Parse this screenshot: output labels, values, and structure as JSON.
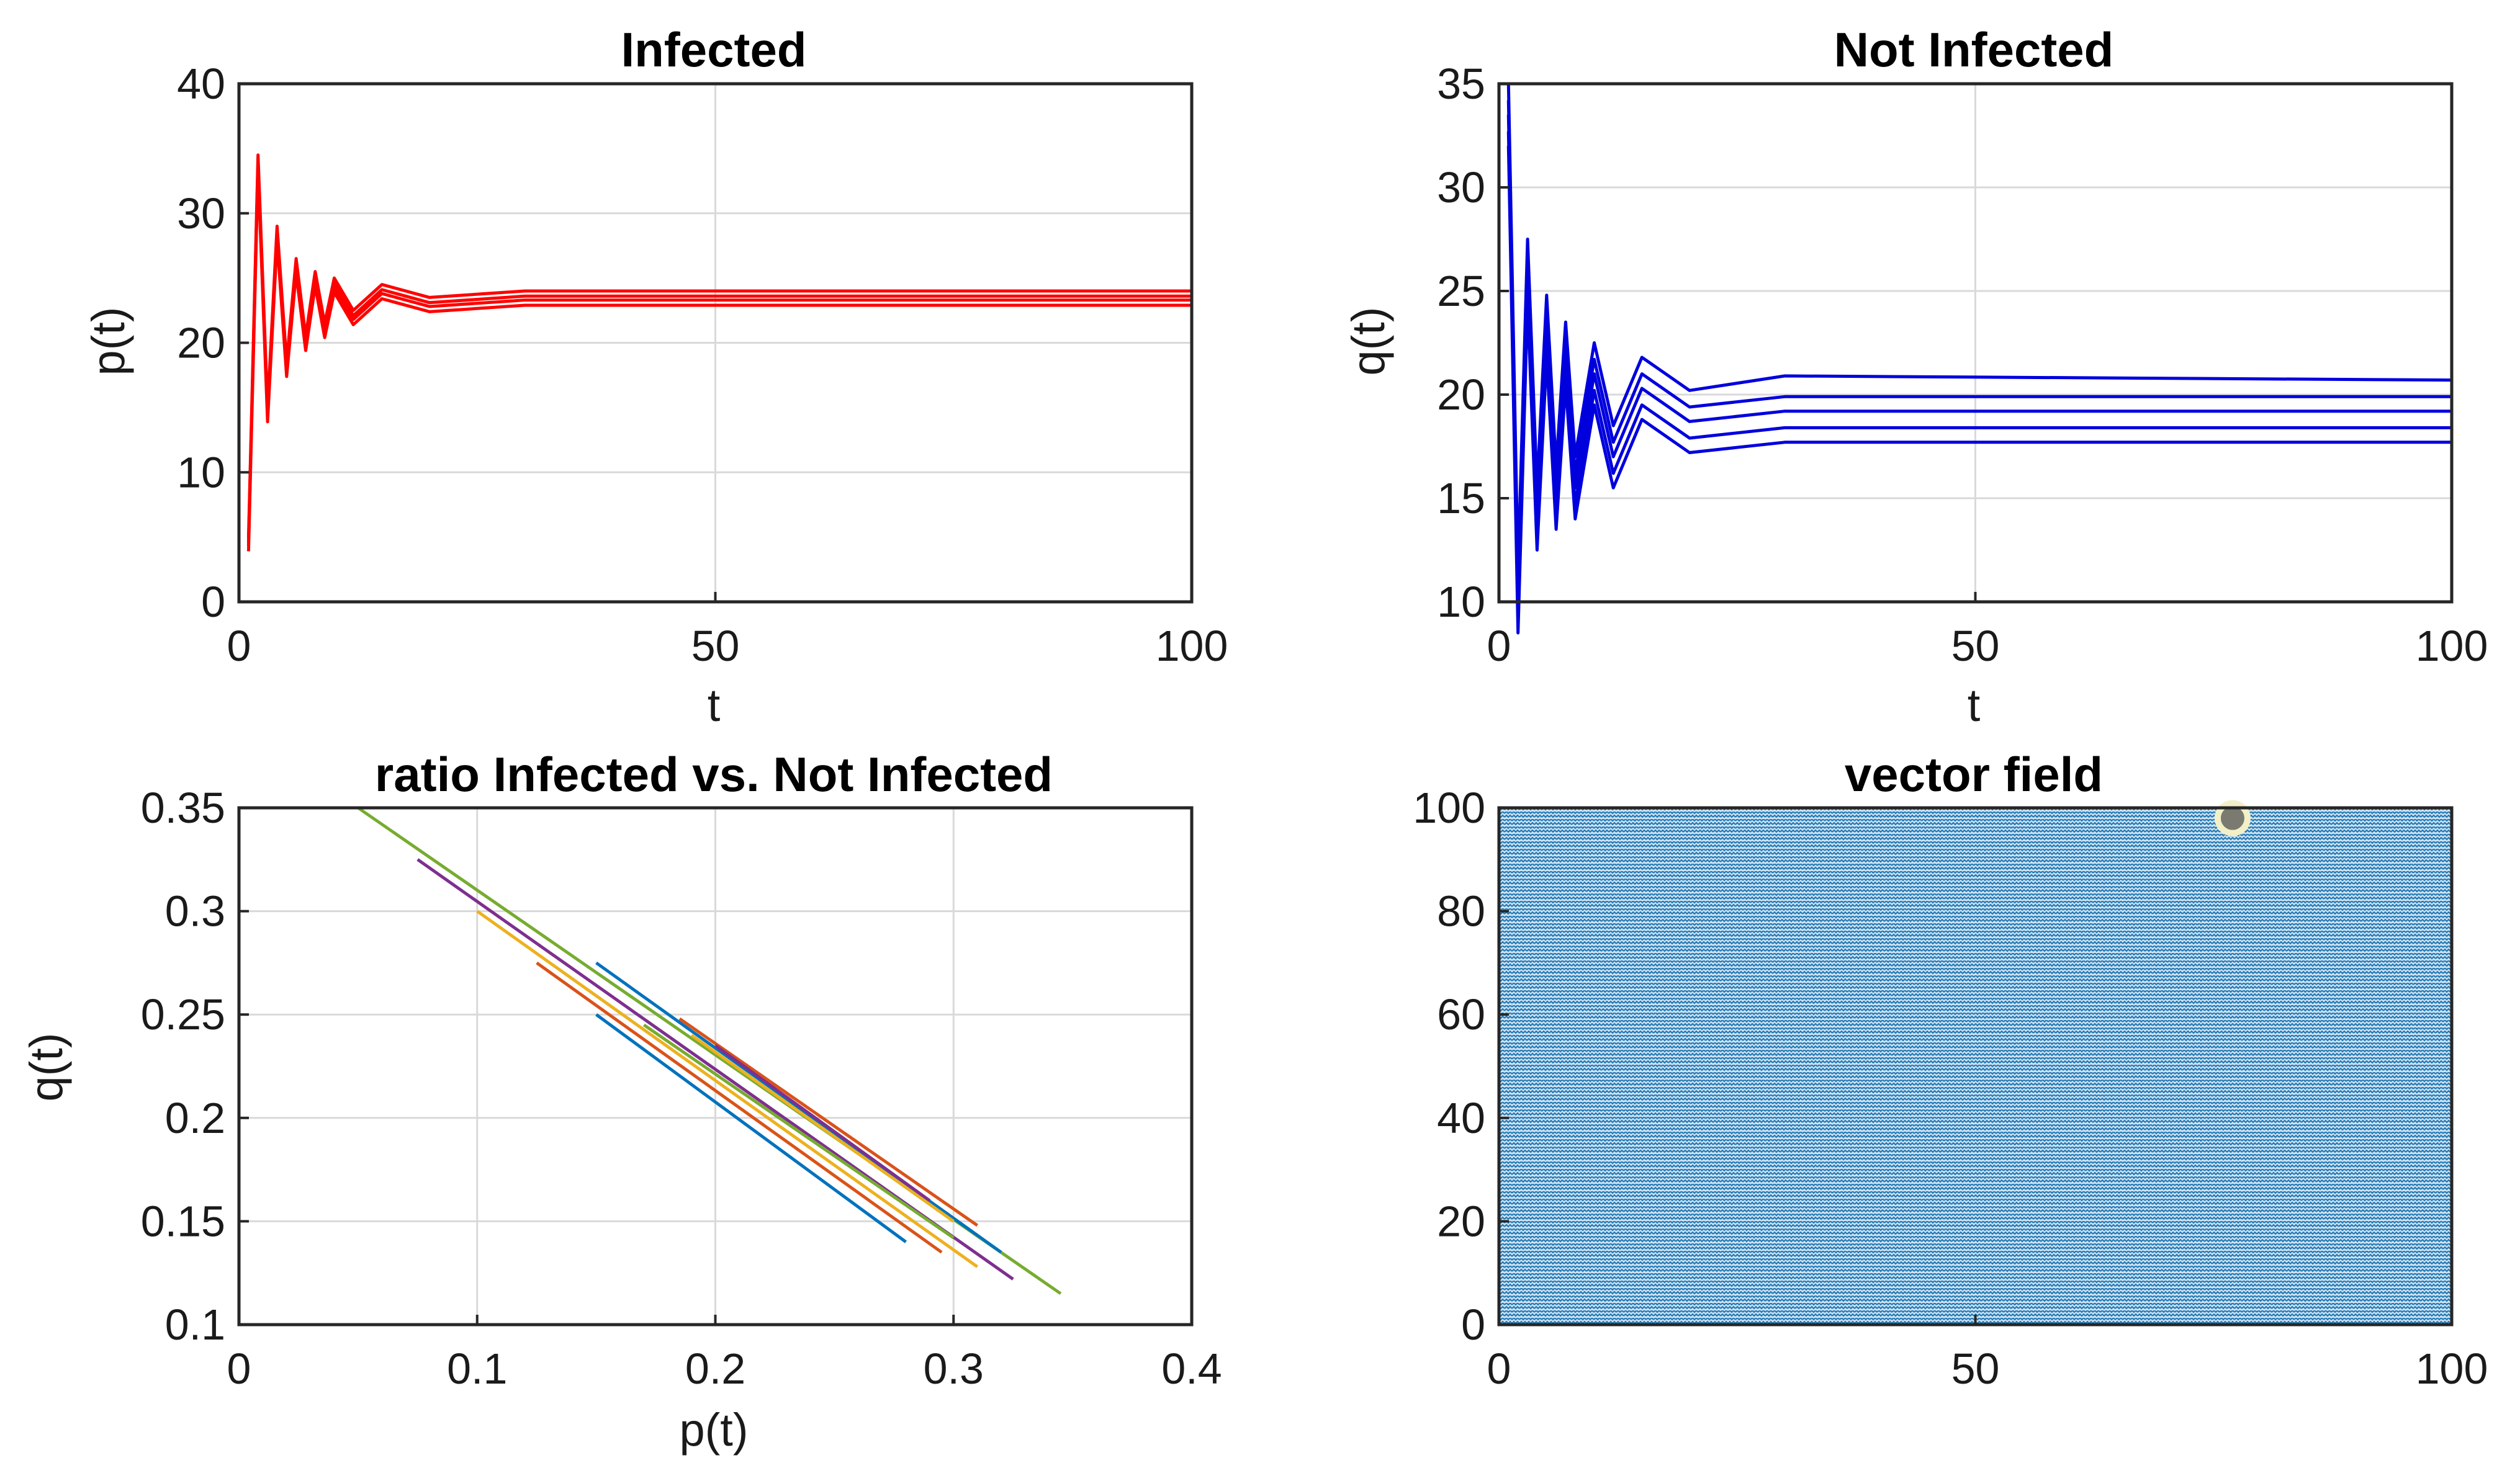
{
  "colors": {
    "infected": "#ff0000",
    "not_infected": "#0000dd",
    "field": "#1f78b4",
    "ratio_palette": [
      "#0072bd",
      "#d95319",
      "#edb120",
      "#7e2f8e",
      "#77ac30"
    ]
  },
  "chart_data": [
    {
      "type": "line",
      "title": "Infected",
      "xlabel": "t",
      "ylabel": "p(t)",
      "xlim": [
        0,
        100
      ],
      "ylim": [
        0,
        40
      ],
      "xticks": [
        "0",
        "50",
        "100"
      ],
      "yticks": [
        "0",
        "10",
        "20",
        "30",
        "40"
      ],
      "grid": true,
      "series": [
        {
          "initial": 5,
          "peak": 34.5,
          "trough": 15,
          "steady": 24.0,
          "values": [
            [
              1,
              5
            ],
            [
              2,
              34.5
            ],
            [
              3,
              15
            ],
            [
              4,
              29
            ],
            [
              5,
              18.5
            ],
            [
              6,
              26.5
            ],
            [
              7,
              20.5
            ],
            [
              8,
              25.5
            ],
            [
              9,
              21.5
            ],
            [
              10,
              25
            ],
            [
              12,
              22.5
            ],
            [
              15,
              24.5
            ],
            [
              20,
              23.5
            ],
            [
              30,
              24.0
            ],
            [
              100,
              24.0
            ]
          ]
        },
        {
          "steady": 23.6
        },
        {
          "steady": 23.3
        },
        {
          "steady": 22.9
        }
      ]
    },
    {
      "type": "line",
      "title": "Not Infected",
      "xlabel": "t",
      "ylabel": "q(t)",
      "xlim": [
        0,
        100
      ],
      "ylim": [
        10,
        35
      ],
      "xticks": [
        "0",
        "50",
        "100"
      ],
      "yticks": [
        "10",
        "15",
        "20",
        "25",
        "30",
        "35"
      ],
      "grid": true,
      "series": [
        {
          "initial": 35,
          "trough": 11.5,
          "steady": 20.7,
          "values": [
            [
              1,
              35
            ],
            [
              2,
              11.5
            ],
            [
              3,
              27.5
            ],
            [
              4,
              15.5
            ],
            [
              5,
              24.8
            ],
            [
              6,
              16.5
            ],
            [
              7,
              23.5
            ],
            [
              8,
              17
            ],
            [
              10,
              22.5
            ],
            [
              12,
              18.5
            ],
            [
              15,
              21.8
            ],
            [
              20,
              20.2
            ],
            [
              30,
              20.9
            ],
            [
              100,
              20.7
            ]
          ]
        },
        {
          "steady": 19.9
        },
        {
          "steady": 19.2
        },
        {
          "steady": 18.4
        },
        {
          "steady": 17.7
        }
      ]
    },
    {
      "type": "line",
      "title": "ratio Infected vs. Not Infected",
      "xlabel": "p(t)",
      "ylabel": "q(t)",
      "xlim": [
        0,
        0.4
      ],
      "ylim": [
        0.1,
        0.35
      ],
      "xticks": [
        "0",
        "0.1",
        "0.2",
        "0.3",
        "0.4"
      ],
      "yticks": [
        "0.1",
        "0.15",
        "0.2",
        "0.25",
        "0.3",
        "0.35"
      ],
      "grid": true,
      "series": [
        {
          "values": [
            [
              0.15,
              0.25
            ],
            [
              0.28,
              0.14
            ]
          ]
        },
        {
          "values": [
            [
              0.125,
              0.275
            ],
            [
              0.295,
              0.135
            ]
          ]
        },
        {
          "values": [
            [
              0.1,
              0.3
            ],
            [
              0.31,
              0.128
            ]
          ]
        },
        {
          "values": [
            [
              0.075,
              0.325
            ],
            [
              0.325,
              0.122
            ]
          ]
        },
        {
          "values": [
            [
              0.05,
              0.35
            ],
            [
              0.345,
              0.115
            ]
          ]
        },
        {
          "values": [
            [
              0.15,
              0.275
            ],
            [
              0.32,
              0.135
            ]
          ]
        },
        {
          "values": [
            [
              0.185,
              0.248
            ],
            [
              0.31,
              0.148
            ]
          ]
        },
        {
          "values": [
            [
              0.19,
              0.24
            ],
            [
              0.3,
              0.15
            ]
          ]
        },
        {
          "values": [
            [
              0.2,
              0.235
            ],
            [
              0.29,
              0.16
            ]
          ]
        },
        {
          "values": [
            [
              0.17,
              0.245
            ],
            [
              0.3,
              0.142
            ]
          ]
        }
      ]
    },
    {
      "type": "vector field",
      "title": "vector field",
      "xlim": [
        0,
        100
      ],
      "ylim": [
        0,
        100
      ],
      "xticks": [
        "0",
        "50",
        "100"
      ],
      "yticks": [
        "0",
        "20",
        "40",
        "60",
        "80",
        "100"
      ],
      "grid": false,
      "marker": {
        "x": 77,
        "y": 98
      }
    }
  ]
}
